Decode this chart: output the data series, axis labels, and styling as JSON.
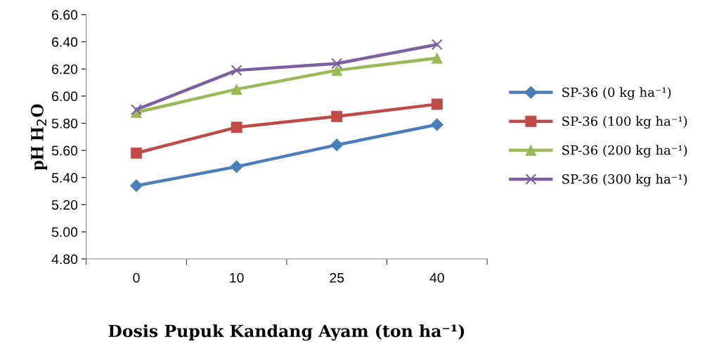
{
  "chart_data": {
    "type": "line",
    "xlabel": "Dosis Pupuk Kandang Ayam (ton ha⁻¹)",
    "ylabel": "pH H$_{2}$O",
    "categories": [
      "0",
      "10",
      "25",
      "40"
    ],
    "series": [
      {
        "name": "SP-36 (0 kg ha⁻¹)",
        "color": "#4a7ebb",
        "marker": "diamond",
        "values": [
          5.34,
          5.48,
          5.64,
          5.79
        ]
      },
      {
        "name": "SP-36 (100 kg ha⁻¹)",
        "color": "#be4b48",
        "marker": "square",
        "values": [
          5.58,
          5.77,
          5.85,
          5.94
        ]
      },
      {
        "name": "SP-36 (200 kg ha⁻¹)",
        "color": "#98b954",
        "marker": "triangle",
        "values": [
          5.88,
          6.05,
          6.19,
          6.28
        ]
      },
      {
        "name": "SP-36 (300 kg ha⁻¹)",
        "color": "#7d60a0",
        "marker": "cross",
        "values": [
          5.9,
          6.19,
          6.24,
          6.38
        ]
      }
    ],
    "ylim": [
      4.8,
      6.6
    ],
    "yticks": [
      {
        "value": 4.8,
        "label": "4.80"
      },
      {
        "value": 5.0,
        "label": "5.00"
      },
      {
        "value": 5.2,
        "label": "5.20"
      },
      {
        "value": 5.4,
        "label": "5.40"
      },
      {
        "value": 5.6,
        "label": "5.60"
      },
      {
        "value": 5.8,
        "label": "5.80"
      },
      {
        "value": 6.0,
        "label": "6.00"
      },
      {
        "value": 6.2,
        "label": "6.20"
      },
      {
        "value": 6.4,
        "label": "6.40"
      },
      {
        "value": 6.6,
        "label": "6.60"
      }
    ],
    "grid": false,
    "legend": "right",
    "line_style": "solid"
  }
}
